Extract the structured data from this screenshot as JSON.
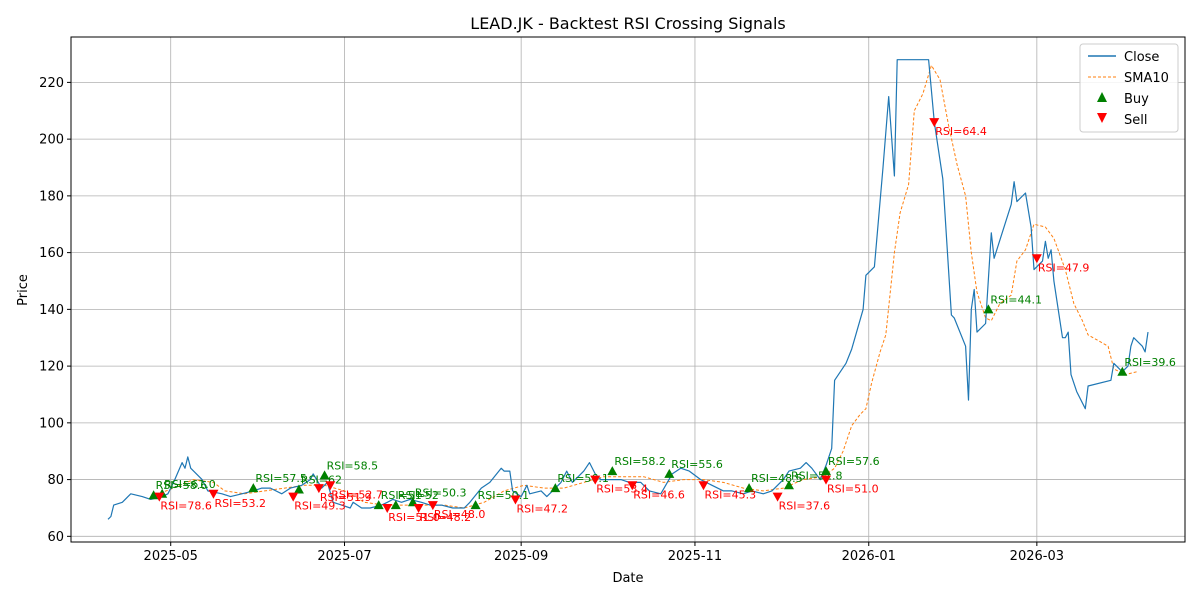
{
  "chart_data": {
    "type": "line",
    "title": "LEAD.JK - Backtest RSI Crossing Signals",
    "xlabel": "Date",
    "ylabel": "Price",
    "xlim": [
      "2025-03-27",
      "2026-04-22"
    ],
    "ylim": [
      58,
      236
    ],
    "x_ticks": [
      "2025-05-01",
      "2025-07-01",
      "2025-09-01",
      "2025-11-01",
      "2026-01-01",
      "2026-03-01"
    ],
    "x_tick_labels": [
      "2025-05",
      "2025-07",
      "2025-09",
      "2025-11",
      "2026-01",
      "2026-03"
    ],
    "y_ticks": [
      60,
      80,
      100,
      120,
      140,
      160,
      180,
      200,
      220
    ],
    "grid": true,
    "legend_position": "top-right",
    "legend": [
      "Close",
      "SMA10",
      "Buy",
      "Sell"
    ],
    "colors": {
      "close": "#1f77b4",
      "sma": "#ff7f0e",
      "buy": "#008000",
      "sell": "#ff0000"
    },
    "series": [
      {
        "name": "Close",
        "style": "solid",
        "points": [
          [
            "2025-04-09",
            66
          ],
          [
            "2025-04-10",
            67
          ],
          [
            "2025-04-11",
            71
          ],
          [
            "2025-04-14",
            72
          ],
          [
            "2025-04-16",
            74
          ],
          [
            "2025-04-17",
            75
          ],
          [
            "2025-04-21",
            74
          ],
          [
            "2025-04-24",
            73
          ],
          [
            "2025-04-28",
            74
          ],
          [
            "2025-04-30",
            75
          ],
          [
            "2025-05-02",
            79
          ],
          [
            "2025-05-05",
            86
          ],
          [
            "2025-05-06",
            84
          ],
          [
            "2025-05-07",
            88
          ],
          [
            "2025-05-08",
            84
          ],
          [
            "2025-05-12",
            80
          ],
          [
            "2025-05-14",
            76
          ],
          [
            "2025-05-19",
            75
          ],
          [
            "2025-05-22",
            74
          ],
          [
            "2025-05-26",
            75
          ],
          [
            "2025-05-30",
            76
          ],
          [
            "2025-06-02",
            77
          ],
          [
            "2025-06-05",
            77
          ],
          [
            "2025-06-09",
            75
          ],
          [
            "2025-06-12",
            77
          ],
          [
            "2025-06-16",
            78
          ],
          [
            "2025-06-19",
            80
          ],
          [
            "2025-06-20",
            82
          ],
          [
            "2025-06-23",
            77
          ],
          [
            "2025-06-25",
            79
          ],
          [
            "2025-06-27",
            72
          ],
          [
            "2025-06-30",
            71
          ],
          [
            "2025-07-03",
            70
          ],
          [
            "2025-07-04",
            72
          ],
          [
            "2025-07-07",
            70
          ],
          [
            "2025-07-10",
            70
          ],
          [
            "2025-07-14",
            71
          ],
          [
            "2025-07-16",
            72
          ],
          [
            "2025-07-18",
            73
          ],
          [
            "2025-07-21",
            72
          ],
          [
            "2025-07-24",
            73
          ],
          [
            "2025-07-28",
            72
          ],
          [
            "2025-07-31",
            71
          ],
          [
            "2025-08-04",
            71
          ],
          [
            "2025-08-08",
            70
          ],
          [
            "2025-08-12",
            70
          ],
          [
            "2025-08-14",
            72
          ],
          [
            "2025-08-18",
            77
          ],
          [
            "2025-08-21",
            79
          ],
          [
            "2025-08-25",
            84
          ],
          [
            "2025-08-26",
            83
          ],
          [
            "2025-08-28",
            83
          ],
          [
            "2025-08-29",
            76
          ],
          [
            "2025-09-01",
            74
          ],
          [
            "2025-09-03",
            78
          ],
          [
            "2025-09-04",
            75
          ],
          [
            "2025-09-08",
            76
          ],
          [
            "2025-09-10",
            74
          ],
          [
            "2025-09-12",
            76
          ],
          [
            "2025-09-15",
            79
          ],
          [
            "2025-09-17",
            83
          ],
          [
            "2025-09-19",
            79
          ],
          [
            "2025-09-23",
            83
          ],
          [
            "2025-09-25",
            86
          ],
          [
            "2025-09-27",
            82
          ],
          [
            "2025-09-29",
            80
          ],
          [
            "2025-10-02",
            80
          ],
          [
            "2025-10-06",
            80
          ],
          [
            "2025-10-09",
            79
          ],
          [
            "2025-10-13",
            79
          ],
          [
            "2025-10-16",
            76
          ],
          [
            "2025-10-20",
            75
          ],
          [
            "2025-10-24",
            82
          ],
          [
            "2025-10-27",
            84
          ],
          [
            "2025-10-30",
            83
          ],
          [
            "2025-11-03",
            80
          ],
          [
            "2025-11-07",
            78
          ],
          [
            "2025-11-11",
            76
          ],
          [
            "2025-11-14",
            76
          ],
          [
            "2025-11-18",
            75
          ],
          [
            "2025-11-21",
            76
          ],
          [
            "2025-11-25",
            75
          ],
          [
            "2025-11-28",
            76
          ],
          [
            "2025-12-02",
            80
          ],
          [
            "2025-12-04",
            83
          ],
          [
            "2025-12-08",
            84
          ],
          [
            "2025-12-10",
            86
          ],
          [
            "2025-12-12",
            84
          ],
          [
            "2025-12-15",
            80
          ],
          [
            "2025-12-17",
            85
          ],
          [
            "2025-12-19",
            91
          ],
          [
            "2025-12-20",
            115
          ],
          [
            "2025-12-24",
            121
          ],
          [
            "2025-12-26",
            126
          ],
          [
            "2025-12-30",
            140
          ],
          [
            "2025-12-31",
            152
          ],
          [
            "2026-01-03",
            155
          ],
          [
            "2026-01-06",
            190
          ],
          [
            "2026-01-08",
            215
          ],
          [
            "2026-01-10",
            187
          ],
          [
            "2026-01-11",
            228
          ],
          [
            "2026-01-21",
            228
          ],
          [
            "2026-01-22",
            228
          ],
          [
            "2026-01-24",
            206
          ],
          [
            "2026-01-27",
            186
          ],
          [
            "2026-01-30",
            138
          ],
          [
            "2026-01-31",
            137
          ],
          [
            "2026-02-04",
            127
          ],
          [
            "2026-02-05",
            108
          ],
          [
            "2026-02-06",
            140
          ],
          [
            "2026-02-07",
            147
          ],
          [
            "2026-02-08",
            132
          ],
          [
            "2026-02-11",
            135
          ],
          [
            "2026-02-13",
            167
          ],
          [
            "2026-02-14",
            158
          ],
          [
            "2026-02-20",
            177
          ],
          [
            "2026-02-21",
            185
          ],
          [
            "2026-02-22",
            178
          ],
          [
            "2026-02-25",
            181
          ],
          [
            "2026-02-27",
            169
          ],
          [
            "2026-02-28",
            154
          ],
          [
            "2026-03-03",
            157
          ],
          [
            "2026-03-04",
            164
          ],
          [
            "2026-03-05",
            158
          ],
          [
            "2026-03-06",
            161
          ],
          [
            "2026-03-07",
            150
          ],
          [
            "2026-03-10",
            130
          ],
          [
            "2026-03-11",
            130
          ],
          [
            "2026-03-12",
            132
          ],
          [
            "2026-03-13",
            117
          ],
          [
            "2026-03-15",
            111
          ],
          [
            "2026-03-18",
            105
          ],
          [
            "2026-03-19",
            113
          ],
          [
            "2026-03-27",
            115
          ],
          [
            "2026-03-28",
            121
          ],
          [
            "2026-03-31",
            118
          ],
          [
            "2026-04-02",
            120
          ],
          [
            "2026-04-03",
            127
          ],
          [
            "2026-04-04",
            130
          ],
          [
            "2026-04-07",
            127
          ],
          [
            "2026-04-08",
            125
          ],
          [
            "2026-04-09",
            132
          ]
        ]
      },
      {
        "name": "SMA10",
        "style": "dashed",
        "points": [
          [
            "2025-04-24",
            74
          ],
          [
            "2025-05-02",
            77
          ],
          [
            "2025-05-09",
            80
          ],
          [
            "2025-05-16",
            79
          ],
          [
            "2025-05-20",
            76
          ],
          [
            "2025-05-27",
            75
          ],
          [
            "2025-06-03",
            76
          ],
          [
            "2025-06-10",
            77
          ],
          [
            "2025-06-17",
            78
          ],
          [
            "2025-06-24",
            78
          ],
          [
            "2025-07-01",
            76
          ],
          [
            "2025-07-08",
            72
          ],
          [
            "2025-07-15",
            71
          ],
          [
            "2025-07-22",
            71
          ],
          [
            "2025-07-29",
            71
          ],
          [
            "2025-08-05",
            71
          ],
          [
            "2025-08-12",
            70
          ],
          [
            "2025-08-19",
            72
          ],
          [
            "2025-08-26",
            76
          ],
          [
            "2025-09-02",
            78
          ],
          [
            "2025-09-09",
            77
          ],
          [
            "2025-09-16",
            77
          ],
          [
            "2025-09-23",
            79
          ],
          [
            "2025-09-30",
            81
          ],
          [
            "2025-10-07",
            81
          ],
          [
            "2025-10-14",
            81
          ],
          [
            "2025-10-21",
            79
          ],
          [
            "2025-10-28",
            80
          ],
          [
            "2025-11-04",
            80
          ],
          [
            "2025-11-11",
            79
          ],
          [
            "2025-11-18",
            77
          ],
          [
            "2025-11-25",
            76
          ],
          [
            "2025-12-02",
            77
          ],
          [
            "2025-12-09",
            80
          ],
          [
            "2025-12-16",
            81
          ],
          [
            "2025-12-20",
            84
          ],
          [
            "2025-12-23",
            90
          ],
          [
            "2025-12-26",
            99
          ],
          [
            "2025-12-29",
            103
          ],
          [
            "2025-12-31",
            105
          ],
          [
            "2026-01-02",
            114
          ],
          [
            "2026-01-05",
            125
          ],
          [
            "2026-01-07",
            131
          ],
          [
            "2026-01-10",
            160
          ],
          [
            "2026-01-12",
            174
          ],
          [
            "2026-01-15",
            184
          ],
          [
            "2026-01-17",
            210
          ],
          [
            "2026-01-20",
            216
          ],
          [
            "2026-01-23",
            226
          ],
          [
            "2026-01-26",
            221
          ],
          [
            "2026-01-29",
            205
          ],
          [
            "2026-02-01",
            191
          ],
          [
            "2026-02-04",
            180
          ],
          [
            "2026-02-06",
            160
          ],
          [
            "2026-02-08",
            146
          ],
          [
            "2026-02-11",
            137
          ],
          [
            "2026-02-13",
            136
          ],
          [
            "2026-02-16",
            142
          ],
          [
            "2026-02-20",
            145
          ],
          [
            "2026-02-22",
            157
          ],
          [
            "2026-02-25",
            161
          ],
          [
            "2026-02-28",
            170
          ],
          [
            "2026-03-04",
            169
          ],
          [
            "2026-03-07",
            165
          ],
          [
            "2026-03-11",
            154
          ],
          [
            "2026-03-14",
            142
          ],
          [
            "2026-03-17",
            136
          ],
          [
            "2026-03-19",
            131
          ],
          [
            "2026-03-26",
            127
          ],
          [
            "2026-03-28",
            119
          ],
          [
            "2026-04-01",
            117
          ],
          [
            "2026-04-05",
            118
          ]
        ]
      }
    ],
    "buy_signals": [
      {
        "date": "2025-04-25",
        "price": 74.5,
        "label": "RSI=58.6"
      },
      {
        "date": "2025-04-28",
        "price": 75,
        "label": "RSI=61.0"
      },
      {
        "date": "2025-05-30",
        "price": 77,
        "label": "RSI=57.5"
      },
      {
        "date": "2025-06-15",
        "price": 76.5,
        "label": "RSI=62"
      },
      {
        "date": "2025-06-24",
        "price": 81.5,
        "label": "RSI=58.5"
      },
      {
        "date": "2025-07-13",
        "price": 71,
        "label": "RSI=51"
      },
      {
        "date": "2025-07-19",
        "price": 71,
        "label": "RSI=52"
      },
      {
        "date": "2025-07-25",
        "price": 72,
        "label": "RSI=50.3"
      },
      {
        "date": "2025-08-16",
        "price": 71,
        "label": "RSI=50.1"
      },
      {
        "date": "2025-09-13",
        "price": 77,
        "label": "RSI=56.1"
      },
      {
        "date": "2025-10-03",
        "price": 83,
        "label": "RSI=58.2"
      },
      {
        "date": "2025-10-23",
        "price": 82,
        "label": "RSI=55.6"
      },
      {
        "date": "2025-11-20",
        "price": 77,
        "label": "RSI=48.5"
      },
      {
        "date": "2025-12-04",
        "price": 78,
        "label": "RSI=51.8"
      },
      {
        "date": "2025-12-17",
        "price": 83,
        "label": "RSI=57.6"
      },
      {
        "date": "2026-02-12",
        "price": 140,
        "label": "RSI=44.1"
      },
      {
        "date": "2026-03-31",
        "price": 118,
        "label": "RSI=39.6"
      }
    ],
    "sell_signals": [
      {
        "date": "2025-04-27",
        "price": 74,
        "label": "RSI=78.6"
      },
      {
        "date": "2025-05-16",
        "price": 75,
        "label": "RSI=53.2"
      },
      {
        "date": "2025-06-13",
        "price": 74,
        "label": "RSI=49.3"
      },
      {
        "date": "2025-06-22",
        "price": 77,
        "label": "RSI=51.9"
      },
      {
        "date": "2025-06-26",
        "price": 78,
        "label": "RSI=52.7"
      },
      {
        "date": "2025-07-16",
        "price": 70,
        "label": "RSI=51.0"
      },
      {
        "date": "2025-07-27",
        "price": 70,
        "label": "RSI=48.2"
      },
      {
        "date": "2025-08-01",
        "price": 71,
        "label": "RSI=48.0"
      },
      {
        "date": "2025-08-30",
        "price": 73,
        "label": "RSI=47.2"
      },
      {
        "date": "2025-09-27",
        "price": 80,
        "label": "RSI=53.4"
      },
      {
        "date": "2025-10-10",
        "price": 78,
        "label": "RSI=46.6"
      },
      {
        "date": "2025-11-04",
        "price": 78,
        "label": "RSI=45.3"
      },
      {
        "date": "2025-11-30",
        "price": 74,
        "label": "RSI=37.6"
      },
      {
        "date": "2025-12-17",
        "price": 80,
        "label": "RSI=51.0"
      },
      {
        "date": "2026-01-24",
        "price": 206,
        "label": "RSI=64.4"
      },
      {
        "date": "2026-03-01",
        "price": 158,
        "label": "RSI=47.9"
      }
    ]
  }
}
